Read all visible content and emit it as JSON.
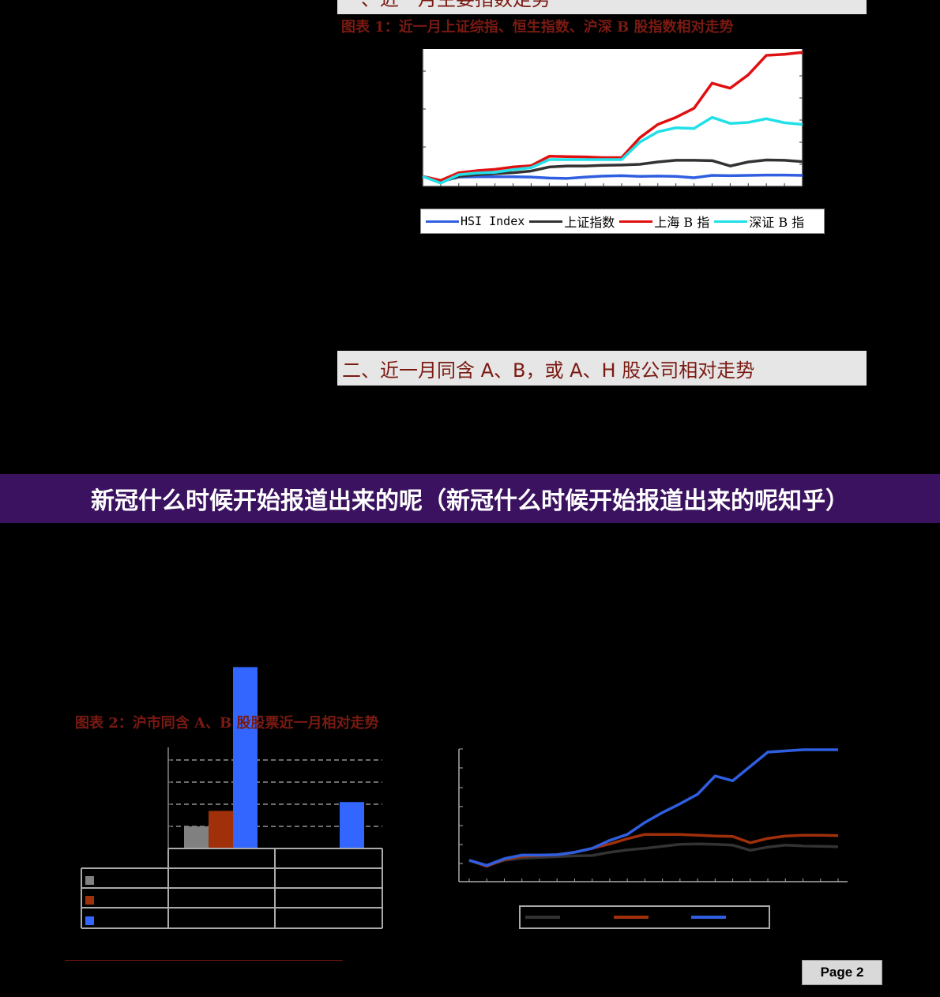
{
  "sections": {
    "section1_title": "一、近一月主要指数走势",
    "section2_title": "二、近一月同含 A、B，或 A、H 股公司相对走势"
  },
  "figure1": {
    "caption": "图表 1：近一月上证综指、恒生指数、沪深 B 股指数相对走势"
  },
  "figure2": {
    "caption": "图表 2：沪市同含 A、B 股股票近一月相对走势"
  },
  "banner": {
    "text": "新冠什么时候开始报道出来的呢（新冠什么时候开始报道出来的呢知乎）"
  },
  "footer": {
    "page_label": "Page 2"
  },
  "colors": {
    "accent": "#7a1a12",
    "banner_bg": "#3b1260",
    "hsi": "#2f5fe0",
    "shz": "#333333",
    "shb": "#e01010",
    "szb": "#22e0e8",
    "bar_gray": "#808080",
    "bar_brown": "#a0300a",
    "bar_blue": "#3366ff"
  },
  "chart_data": [
    {
      "type": "line",
      "x": [
        1,
        2,
        3,
        4,
        5,
        6,
        7,
        8,
        9,
        10,
        11,
        12,
        13,
        14,
        15,
        16,
        17,
        18,
        19,
        20,
        21,
        22
      ],
      "series": [
        {
          "name": "HSI  Index",
          "color": "#2f5fe0",
          "values": [
            100,
            98.5,
            99.8,
            99.9,
            99.9,
            99.9,
            99.8,
            99.5,
            99.4,
            99.8,
            100.1,
            100.2,
            100,
            100.1,
            100,
            99.6,
            100.3,
            100.2,
            100.3,
            100.4,
            100.4,
            100.3
          ]
        },
        {
          "name": "上证指数",
          "color": "#333333",
          "values": [
            100,
            98.3,
            100,
            100.5,
            100.8,
            101.1,
            101.6,
            102.8,
            103.1,
            103.1,
            103.3,
            103.4,
            103.6,
            104.3,
            104.8,
            104.8,
            104.7,
            103.1,
            104.3,
            104.9,
            104.8,
            104.4
          ]
        },
        {
          "name": "上海 B 指",
          "color": "#e01010",
          "values": [
            100,
            98.8,
            101.1,
            101.7,
            102.1,
            102.8,
            103.2,
            106,
            105.9,
            105.8,
            105.6,
            105.6,
            111.5,
            115.5,
            117.6,
            120.3,
            127.8,
            126.3,
            130.3,
            136.1,
            136.4,
            137
          ]
        },
        {
          "name": "深证 B 指",
          "color": "#22e0e8",
          "values": [
            100,
            98,
            100.5,
            101,
            101.2,
            102,
            102.6,
            105,
            105,
            105,
            105,
            105,
            110.2,
            113.3,
            114.5,
            114.3,
            117.6,
            115.8,
            116.1,
            117.2,
            116,
            115.5
          ]
        }
      ]
    },
    {
      "type": "bar",
      "series": [
        {
          "values": [
            1.0,
            null
          ]
        },
        {
          "values": [
            1.7,
            null
          ]
        },
        {
          "values": [
            8.2,
            2.1
          ]
        }
      ],
      "ylim": [
        0,
        8
      ]
    },
    {
      "type": "line",
      "x": [
        1,
        2,
        3,
        4,
        5,
        6,
        7,
        8,
        9,
        10,
        11,
        12,
        13,
        14,
        15,
        16,
        17,
        18,
        19,
        20,
        21,
        22
      ],
      "series": [
        {
          "color": "#333333",
          "values": [
            100,
            98.6,
            100,
            100.5,
            100.7,
            100.9,
            101.1,
            101.2,
            102,
            102.6,
            103,
            103.5,
            104,
            104.1,
            104,
            103.8,
            102.5,
            103.3,
            103.8,
            103.6,
            103.5,
            103.4
          ]
        },
        {
          "color": "#a0300a",
          "values": [
            100,
            98.5,
            100.2,
            101,
            101.2,
            101.4,
            102,
            103,
            104.1,
            105.4,
            106.5,
            106.5,
            106.5,
            106.3,
            106.1,
            106,
            104.4,
            105.5,
            106.1,
            106.3,
            106.3,
            106.2
          ]
        },
        {
          "color": "#2f5fe0",
          "values": [
            100,
            98.7,
            100.4,
            101.3,
            101.3,
            101.4,
            102,
            103,
            105,
            106.5,
            109.5,
            112,
            114.2,
            116.6,
            121.2,
            120,
            123.6,
            127.2,
            127.5,
            127.8,
            127.8,
            127.8
          ]
        }
      ]
    }
  ]
}
